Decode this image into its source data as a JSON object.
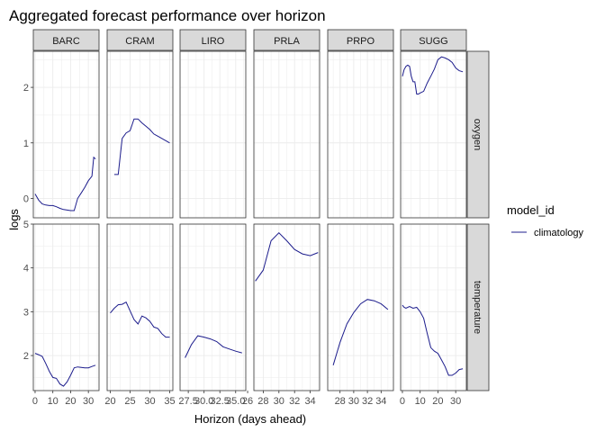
{
  "chart_data": {
    "type": "line",
    "title": "Aggregated forecast performance over horizon",
    "xlabel": "Horizon (days ahead)",
    "ylabel": "logs",
    "legend": {
      "title": "model_id",
      "position": "right",
      "entries": [
        {
          "name": "climatology",
          "color": "#1c1c8c"
        }
      ]
    },
    "grid": true,
    "facet_cols": [
      "BARC",
      "CRAM",
      "LIRO",
      "PRLA",
      "PRPO",
      "SUGG"
    ],
    "facet_rows": [
      "oxygen",
      "temperature"
    ],
    "row_ylim": [
      [
        -0.35,
        2.65
      ],
      [
        1.2,
        5.0
      ]
    ],
    "row_yticks": [
      [
        0,
        1,
        2
      ],
      [
        2,
        3,
        4,
        5
      ]
    ],
    "col_xlim": [
      [
        -1,
        36
      ],
      [
        19.2,
        35.8
      ],
      [
        26.2,
        36.6
      ],
      [
        26.8,
        35.2
      ],
      [
        26.2,
        35.8
      ],
      [
        -1,
        36
      ]
    ],
    "col_xticks": [
      [
        "0",
        "10",
        "20",
        "30"
      ],
      [
        "20",
        "25",
        "30",
        "35"
      ],
      [
        "27.5",
        "30.0",
        "32.5",
        "35.0"
      ],
      [
        "26",
        "28",
        "30",
        "32",
        "34"
      ],
      [
        "28",
        "30",
        "32",
        "34"
      ],
      [
        "0",
        "10",
        "20",
        "30"
      ]
    ],
    "col_xtick_values": [
      [
        0,
        10,
        20,
        30
      ],
      [
        20,
        25,
        30,
        35
      ],
      [
        27.5,
        30,
        32.5,
        35
      ],
      [
        26,
        28,
        30,
        32,
        34
      ],
      [
        28,
        30,
        32,
        34
      ],
      [
        0,
        10,
        20,
        30
      ]
    ],
    "series": [
      {
        "facet": "BARC",
        "variable": "oxygen",
        "name": "climatology",
        "x": [
          0,
          2,
          4,
          6,
          8,
          10,
          12,
          14,
          16,
          18,
          20,
          22,
          24,
          26,
          28,
          30,
          32,
          33,
          34
        ],
        "y": [
          0.08,
          -0.03,
          -0.1,
          -0.12,
          -0.13,
          -0.13,
          -0.15,
          -0.18,
          -0.2,
          -0.21,
          -0.22,
          -0.22,
          0.0,
          0.1,
          0.2,
          0.32,
          0.4,
          0.74,
          0.71
        ]
      },
      {
        "facet": "CRAM",
        "variable": "oxygen",
        "name": "climatology",
        "x": [
          21,
          22,
          23,
          24,
          25,
          26,
          27,
          28,
          29,
          30,
          31,
          32,
          33,
          34,
          35
        ],
        "y": [
          0.43,
          0.43,
          1.08,
          1.18,
          1.22,
          1.43,
          1.43,
          1.36,
          1.3,
          1.24,
          1.16,
          1.12,
          1.08,
          1.04,
          1.0
        ]
      },
      {
        "facet": "PRLA",
        "variable": "oxygen",
        "name": "climatology",
        "x": [],
        "y": []
      },
      {
        "facet": "PRPO",
        "variable": "oxygen",
        "name": "climatology",
        "x": [],
        "y": []
      },
      {
        "facet": "LIRO",
        "variable": "oxygen",
        "name": "climatology",
        "x": [],
        "y": []
      },
      {
        "facet": "SUGG",
        "variable": "oxygen",
        "name": "climatology",
        "x": [
          0,
          1,
          2,
          3,
          4,
          5,
          6,
          7,
          8,
          9,
          10,
          12,
          14,
          16,
          18,
          20,
          22,
          24,
          26,
          28,
          30,
          32,
          34
        ],
        "y": [
          2.2,
          2.32,
          2.38,
          2.4,
          2.38,
          2.2,
          2.1,
          2.1,
          1.88,
          1.88,
          1.9,
          1.93,
          2.08,
          2.2,
          2.33,
          2.5,
          2.55,
          2.53,
          2.5,
          2.45,
          2.35,
          2.3,
          2.28
        ]
      },
      {
        "facet": "BARC",
        "variable": "temperature",
        "name": "climatology",
        "x": [
          0,
          2,
          4,
          6,
          8,
          10,
          12,
          14,
          16,
          18,
          20,
          22,
          24,
          26,
          28,
          30,
          32,
          34
        ],
        "y": [
          2.05,
          2.02,
          1.98,
          1.82,
          1.64,
          1.5,
          1.48,
          1.35,
          1.3,
          1.4,
          1.55,
          1.72,
          1.74,
          1.73,
          1.72,
          1.72,
          1.75,
          1.78
        ]
      },
      {
        "facet": "CRAM",
        "variable": "temperature",
        "name": "climatology",
        "x": [
          20,
          21,
          22,
          23,
          24,
          25,
          26,
          27,
          28,
          29,
          30,
          31,
          32,
          33,
          34,
          35
        ],
        "y": [
          2.97,
          3.08,
          3.16,
          3.17,
          3.22,
          3.02,
          2.82,
          2.72,
          2.9,
          2.86,
          2.78,
          2.65,
          2.62,
          2.5,
          2.42,
          2.42
        ]
      },
      {
        "facet": "LIRO",
        "variable": "temperature",
        "name": "climatology",
        "x": [
          27,
          28,
          29,
          30,
          31,
          32,
          33,
          34,
          35,
          36
        ],
        "y": [
          1.95,
          2.25,
          2.45,
          2.42,
          2.38,
          2.32,
          2.2,
          2.15,
          2.1,
          2.06
        ]
      },
      {
        "facet": "PRLA",
        "variable": "temperature",
        "name": "climatology",
        "x": [
          27,
          28,
          29,
          30,
          31,
          32,
          33,
          34,
          35
        ],
        "y": [
          3.7,
          3.95,
          4.62,
          4.8,
          4.62,
          4.42,
          4.32,
          4.28,
          4.35
        ]
      },
      {
        "facet": "PRPO",
        "variable": "temperature",
        "name": "climatology",
        "x": [
          27,
          28,
          29,
          30,
          31,
          32,
          33,
          34,
          35
        ],
        "y": [
          1.78,
          2.3,
          2.72,
          2.98,
          3.18,
          3.28,
          3.25,
          3.18,
          3.05
        ]
      },
      {
        "facet": "SUGG",
        "variable": "temperature",
        "name": "climatology",
        "x": [
          0,
          1,
          2,
          4,
          6,
          8,
          10,
          12,
          14,
          16,
          18,
          20,
          22,
          24,
          26,
          28,
          30,
          32,
          34
        ],
        "y": [
          3.15,
          3.1,
          3.08,
          3.12,
          3.08,
          3.1,
          3.0,
          2.85,
          2.5,
          2.18,
          2.1,
          2.05,
          1.9,
          1.75,
          1.55,
          1.55,
          1.6,
          1.68,
          1.7
        ]
      }
    ]
  }
}
